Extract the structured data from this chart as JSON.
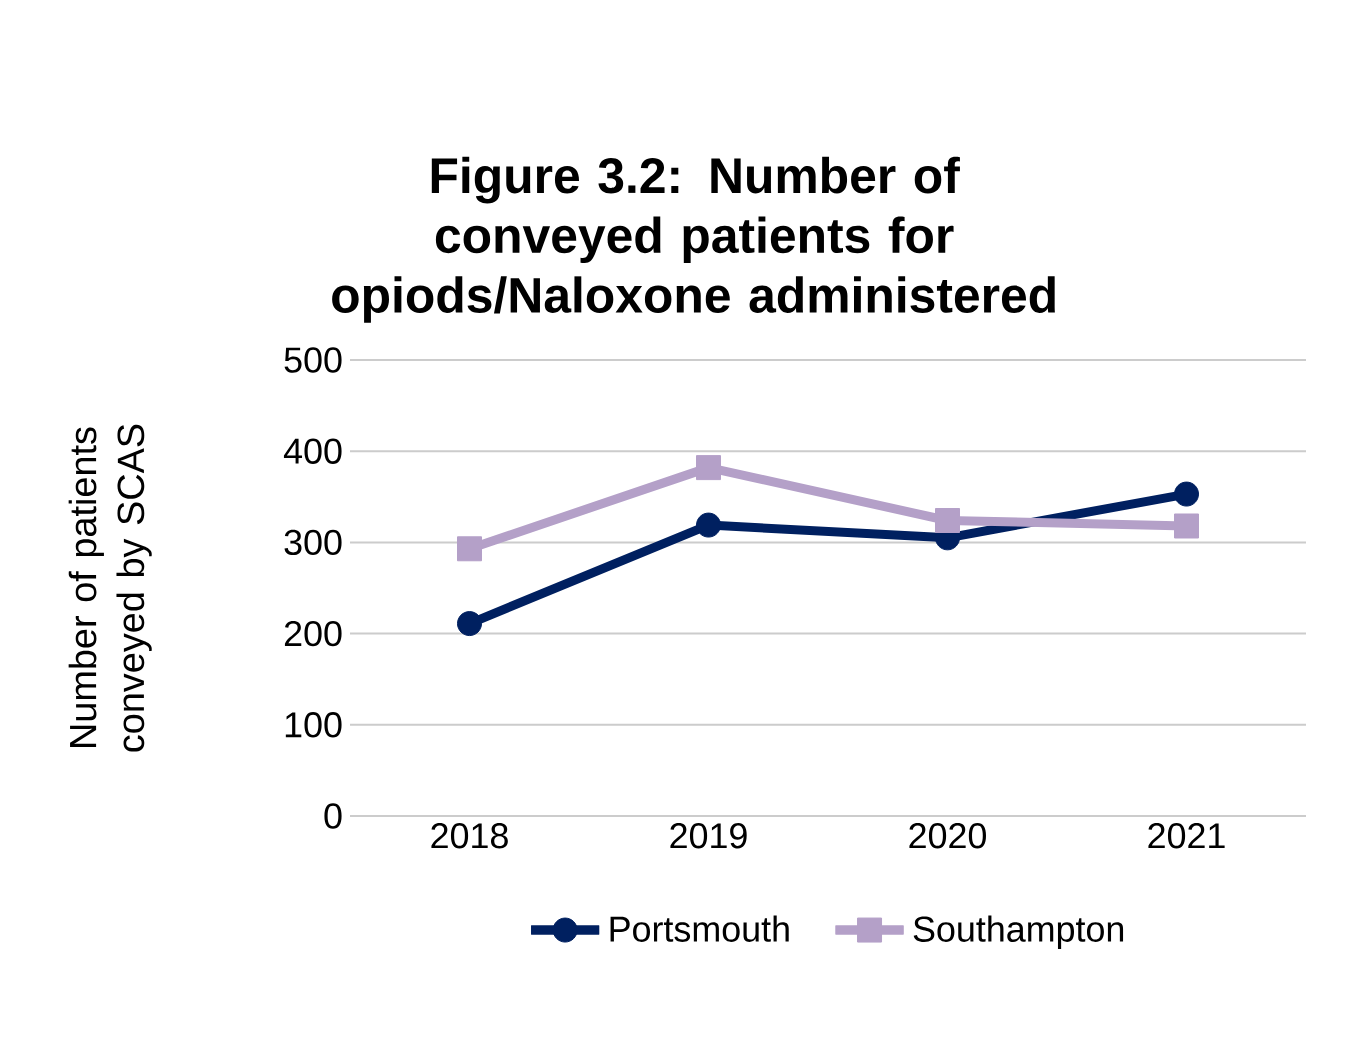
{
  "chart_data": {
    "type": "line",
    "title": "Figure 3.2: Number of conveyed patients for opiods/Naloxone administered",
    "ylabel": "Number of patients conveyed by SCAS",
    "categories": [
      "2018",
      "2019",
      "2020",
      "2021"
    ],
    "series": [
      {
        "name": "Portsmouth",
        "color": "#002060",
        "marker": "circle",
        "values": [
          211,
          319,
          305,
          353
        ]
      },
      {
        "name": "Southampton",
        "color": "#b4a0c8",
        "marker": "square",
        "values": [
          293,
          382,
          324,
          318
        ]
      }
    ],
    "ylim": [
      0,
      500
    ],
    "yticks": [
      0,
      100,
      200,
      300,
      400,
      500
    ],
    "grid": "y",
    "legend": "bottom"
  }
}
